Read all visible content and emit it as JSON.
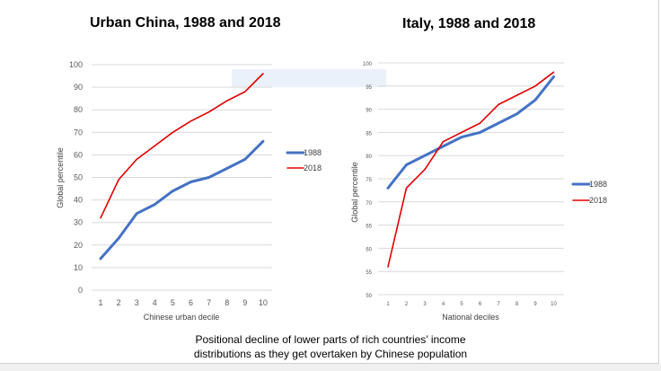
{
  "chart_data": [
    {
      "type": "line",
      "title": "Urban China, 1988 and 2018",
      "xlabel": "Chinese urban decile",
      "ylabel": "Global percentile",
      "categories": [
        1,
        2,
        3,
        4,
        5,
        6,
        7,
        8,
        9,
        10
      ],
      "ylim": [
        0,
        100
      ],
      "yticks": [
        0,
        10,
        20,
        30,
        40,
        50,
        60,
        70,
        80,
        90,
        100
      ],
      "grid": true,
      "legend": "right",
      "series": [
        {
          "name": "1988",
          "color": "#4472c4",
          "values": [
            14,
            23,
            34,
            38,
            44,
            48,
            50,
            54,
            58,
            66
          ]
        },
        {
          "name": "2018",
          "color": "#e00000",
          "values": [
            32,
            49,
            58,
            64,
            70,
            75,
            79,
            84,
            88,
            96
          ]
        }
      ]
    },
    {
      "type": "line",
      "title": "Italy, 1988 and 2018",
      "xlabel": "National deciles",
      "ylabel": "Global percentile",
      "categories": [
        1,
        2,
        3,
        4,
        5,
        6,
        7,
        8,
        9,
        10
      ],
      "ylim": [
        50,
        100
      ],
      "yticks": [
        50,
        55,
        60,
        65,
        70,
        75,
        80,
        85,
        90,
        95,
        100
      ],
      "grid": true,
      "legend": "right",
      "series": [
        {
          "name": "1988",
          "color": "#4472c4",
          "values": [
            73,
            78,
            80,
            82,
            84,
            85,
            87,
            89,
            92,
            97
          ]
        },
        {
          "name": "2018",
          "color": "#e00000",
          "values": [
            56,
            73,
            77,
            83,
            85,
            87,
            91,
            93,
            95,
            98
          ]
        }
      ]
    }
  ],
  "caption": {
    "line1": "Positional decline of lower parts of rich countries’ income",
    "line2": "distributions as they get overtaken by Chinese population"
  }
}
